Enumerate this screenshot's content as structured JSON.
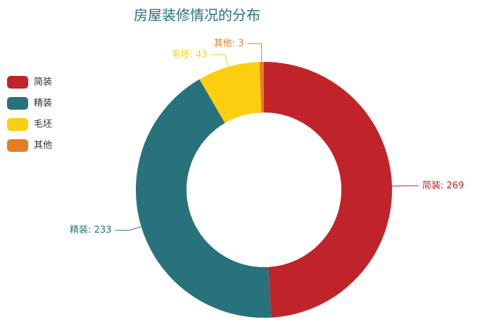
{
  "chart_data": {
    "type": "pie",
    "title": "房屋装修情况的分布",
    "categories": [
      "简装",
      "精装",
      "毛坯",
      "其他"
    ],
    "values": [
      269,
      233,
      43,
      3
    ],
    "value_labels": [
      "简装: 269",
      "精装: 233",
      "毛坯: 43",
      "其他: 3"
    ],
    "colors": [
      "#c1232b",
      "#27727b",
      "#fcce10",
      "#e87c25"
    ],
    "title_color": "#27727b",
    "legend": "left"
  }
}
